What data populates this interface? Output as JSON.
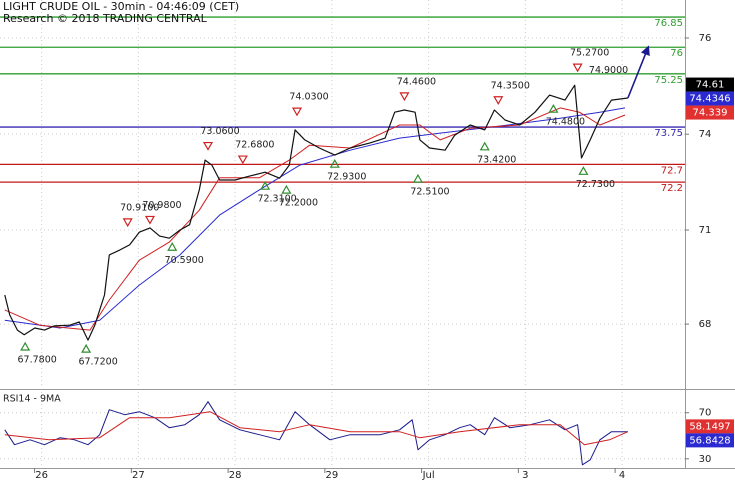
{
  "chart_data": {
    "type": "line",
    "title": "LIGHT CRUDE OIL - 30min - 04:46:09 (CET)",
    "subtitle": "Research © 2018 TRADING CENTRAL",
    "xlim": [
      -0.43,
      6.65
    ],
    "xticks": [
      {
        "value": 0,
        "label": "26"
      },
      {
        "value": 1,
        "label": "27"
      },
      {
        "value": 2,
        "label": "28"
      },
      {
        "value": 3,
        "label": "29"
      },
      {
        "value": 4,
        "label": "Jul"
      },
      {
        "value": 5,
        "label": "3"
      },
      {
        "value": 6,
        "label": "4"
      }
    ],
    "ylim": [
      66.4,
      77.33
    ],
    "yticks": [
      {
        "value": 76.26,
        "label": "76"
      },
      {
        "value": 73.55,
        "label": "74"
      },
      {
        "value": 70.85,
        "label": "71"
      },
      {
        "value": 68.2,
        "label": "68"
      }
    ],
    "grid": true,
    "series": [
      {
        "color": "#111111",
        "x": [
          -0.38,
          -0.33,
          -0.25,
          -0.18,
          -0.07,
          0.03,
          0.13,
          0.29,
          0.39,
          0.48,
          0.55,
          0.65,
          0.7,
          0.81,
          0.91,
          1.01,
          1.12,
          1.22,
          1.32,
          1.43,
          1.53,
          1.63,
          1.69,
          1.76,
          1.84,
          2.0,
          2.15,
          2.31,
          2.46,
          2.56,
          2.62,
          2.72,
          2.87,
          3.03,
          3.19,
          3.39,
          3.55,
          3.65,
          3.75,
          3.86,
          3.91,
          4.01,
          4.17,
          4.27,
          4.43,
          4.58,
          4.68,
          4.79,
          4.94,
          5.1,
          5.25,
          5.41,
          5.51,
          5.58,
          5.67,
          5.77,
          5.89,
          6.06
        ],
        "values": [
          69.02,
          68.46,
          68.03,
          67.9,
          68.09,
          68.03,
          68.15,
          68.17,
          68.26,
          67.75,
          68.17,
          69.02,
          70.15,
          70.29,
          70.43,
          70.79,
          70.91,
          70.68,
          70.62,
          70.85,
          71.0,
          71.98,
          72.82,
          72.68,
          72.26,
          72.26,
          72.37,
          72.48,
          72.31,
          72.68,
          73.67,
          73.39,
          73.16,
          72.96,
          73.16,
          73.3,
          73.44,
          74.17,
          74.23,
          74.17,
          73.39,
          73.16,
          73.1,
          73.52,
          73.81,
          73.67,
          74.23,
          73.95,
          73.81,
          74.17,
          74.65,
          74.51,
          74.93,
          72.88,
          73.39,
          74.0,
          74.51,
          74.57
        ]
      },
      {
        "color": "#d02020",
        "x": [
          -0.38,
          -0.02,
          0.5,
          0.7,
          1.01,
          1.32,
          1.63,
          1.84,
          2.25,
          2.56,
          2.77,
          3.19,
          3.7,
          3.91,
          4.12,
          4.43,
          4.94,
          5.36,
          5.56,
          5.77,
          6.03
        ],
        "values": [
          68.6,
          68.17,
          68.03,
          68.88,
          70.0,
          70.51,
          71.41,
          72.32,
          72.32,
          72.82,
          73.24,
          73.16,
          73.81,
          73.81,
          73.39,
          73.72,
          73.81,
          74.29,
          74.17,
          73.81,
          74.09
        ]
      },
      {
        "color": "#2a2ad0",
        "x": [
          -0.38,
          0.19,
          0.6,
          1.01,
          1.43,
          1.84,
          2.25,
          2.67,
          3.19,
          3.7,
          4.12,
          4.74,
          5.36,
          5.77,
          6.03
        ],
        "values": [
          68.31,
          68.09,
          68.31,
          69.3,
          70.15,
          71.27,
          71.98,
          72.68,
          73.1,
          73.44,
          73.58,
          73.78,
          74.0,
          74.17,
          74.29
        ]
      }
    ],
    "projection": {
      "color": "#1a1a8c",
      "x": [
        6.06,
        6.27
      ],
      "values": [
        74.57,
        76.0
      ]
    },
    "levels": [
      {
        "value": 76.85,
        "color": "#2e9e2e"
      },
      {
        "value": 76,
        "color": "#2e9e2e"
      },
      {
        "value": 75.25,
        "color": "#2e9e2e"
      },
      {
        "value": 73.75,
        "color": "#3a2ab0"
      },
      {
        "value": 72.7,
        "color": "#c01818"
      },
      {
        "value": 72.2,
        "color": "#c01818"
      }
    ],
    "highs": [
      {
        "x": 0.89,
        "value": 70.91,
        "label": "70.9100"
      },
      {
        "x": 1.12,
        "value": 70.98,
        "label": "70.9800"
      },
      {
        "x": 1.72,
        "value": 73.06,
        "label": "73.0600"
      },
      {
        "x": 2.08,
        "value": 72.68,
        "label": "72.6800"
      },
      {
        "x": 2.64,
        "value": 74.03,
        "label": "74.0300"
      },
      {
        "x": 3.75,
        "value": 74.46,
        "label": "74.4600"
      },
      {
        "x": 4.72,
        "value": 74.35,
        "label": "74.3500"
      },
      {
        "x": 5.54,
        "value": 75.27,
        "label": "75.2700"
      }
    ],
    "lows": [
      {
        "x": -0.17,
        "value": 67.78,
        "label": "67.7800"
      },
      {
        "x": 0.46,
        "value": 67.72,
        "label": "67.7200"
      },
      {
        "x": 1.35,
        "value": 70.59,
        "label": "70.5900"
      },
      {
        "x": 2.31,
        "value": 72.31,
        "label": "72.3100"
      },
      {
        "x": 2.53,
        "value": 72.2,
        "label": "72.2000"
      },
      {
        "x": 3.03,
        "value": 72.93,
        "label": "72.9300"
      },
      {
        "x": 3.89,
        "value": 72.51,
        "label": "72.5100"
      },
      {
        "x": 4.58,
        "value": 73.42,
        "label": "73.4200"
      },
      {
        "x": 5.29,
        "value": 74.48,
        "label": "74.4800"
      },
      {
        "x": 5.6,
        "value": 72.73,
        "label": "72.7300"
      }
    ],
    "note": {
      "x": 5.86,
      "value": 74.9,
      "label": "74.9000"
    },
    "tags": [
      {
        "value": 74.61,
        "color": "#000000"
      },
      {
        "value": 74.4346,
        "color": "#2a2ad0"
      },
      {
        "value": 74.339,
        "color": "#e03030"
      }
    ],
    "rsi": {
      "title": "RSI14 - 9MA",
      "ylim": [
        22,
        88
      ],
      "yticks": [
        30,
        70
      ],
      "series": [
        {
          "color": "#1a1a8c",
          "x": [
            -0.38,
            -0.28,
            -0.12,
            0.03,
            0.19,
            0.34,
            0.48,
            0.6,
            0.7,
            0.86,
            1.01,
            1.17,
            1.32,
            1.48,
            1.63,
            1.72,
            1.84,
            2.05,
            2.25,
            2.46,
            2.62,
            2.77,
            2.98,
            3.19,
            3.5,
            3.7,
            3.83,
            3.89,
            4.01,
            4.17,
            4.32,
            4.43,
            4.58,
            4.68,
            4.84,
            5.05,
            5.25,
            5.41,
            5.54,
            5.59,
            5.67,
            5.77,
            5.89,
            6.06
          ],
          "values": [
            55.2,
            42.2,
            46.5,
            42.2,
            48.3,
            46.5,
            42.2,
            50.9,
            72.6,
            68.3,
            70.9,
            65.7,
            57.0,
            59.6,
            68.3,
            79.6,
            63.9,
            55.2,
            50.9,
            46.5,
            70.9,
            59.6,
            46.5,
            50.9,
            50.9,
            55.2,
            63.9,
            37.8,
            46.5,
            50.9,
            57.0,
            59.6,
            50.9,
            65.7,
            57.0,
            59.6,
            63.9,
            55.2,
            59.6,
            24.8,
            29.1,
            46.5,
            53.5,
            53.5
          ]
        },
        {
          "color": "#d02020",
          "x": [
            -0.38,
            0.08,
            0.6,
            0.91,
            1.32,
            1.74,
            2.05,
            2.46,
            2.77,
            3.19,
            3.7,
            3.91,
            4.32,
            4.94,
            5.36,
            5.61,
            5.87,
            6.06
          ],
          "values": [
            50.9,
            46.5,
            48.3,
            65.7,
            65.7,
            70.9,
            57.0,
            53.5,
            59.6,
            53.5,
            53.5,
            48.3,
            53.5,
            59.6,
            59.6,
            42.2,
            46.5,
            53.5
          ]
        }
      ],
      "tags": [
        {
          "value": 58.1497,
          "color": "#e03030"
        },
        {
          "value": 56.8428,
          "color": "#2a2ad0"
        }
      ]
    }
  }
}
